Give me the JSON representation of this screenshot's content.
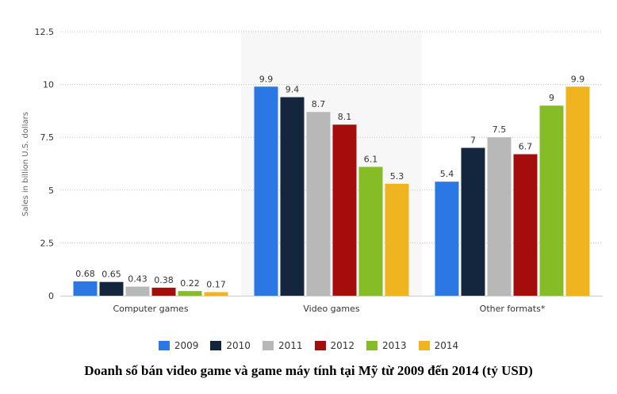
{
  "caption": "Doanh số bán video game và game máy tính tại Mỹ từ 2009 đến 2014 (tỷ USD)",
  "chart_data": {
    "type": "bar",
    "title": "",
    "xlabel": "",
    "ylabel": "Sales in billion U.S. dollars",
    "ylim": [
      0,
      12.5
    ],
    "yticks": [
      "0",
      "2.5",
      "5",
      "7.5",
      "10",
      "12.5"
    ],
    "grid": true,
    "legend_placement": "bottom",
    "highlighted_category": "Video games",
    "categories": [
      "Computer games",
      "Video games",
      "Other formats*"
    ],
    "series": [
      {
        "name": "2009",
        "color": "#2b78e4",
        "values": [
          0.68,
          9.9,
          5.4
        ],
        "labels": [
          "0.68",
          "9.9",
          "5.4"
        ]
      },
      {
        "name": "2010",
        "color": "#14263d",
        "values": [
          0.65,
          9.4,
          7
        ],
        "labels": [
          "0.65",
          "9.4",
          "7"
        ]
      },
      {
        "name": "2011",
        "color": "#b8b8b8",
        "values": [
          0.43,
          8.7,
          7.5
        ],
        "labels": [
          "0.43",
          "8.7",
          "7.5"
        ]
      },
      {
        "name": "2012",
        "color": "#a50d0d",
        "values": [
          0.38,
          8.1,
          6.7
        ],
        "labels": [
          "0.38",
          "8.1",
          "6.7"
        ]
      },
      {
        "name": "2013",
        "color": "#86bc25",
        "values": [
          0.22,
          6.1,
          9
        ],
        "labels": [
          "0.22",
          "6.1",
          "9"
        ]
      },
      {
        "name": "2014",
        "color": "#efb41f",
        "values": [
          0.17,
          5.3,
          9.9
        ],
        "labels": [
          "0.17",
          "5.3",
          "9.9"
        ]
      }
    ]
  }
}
